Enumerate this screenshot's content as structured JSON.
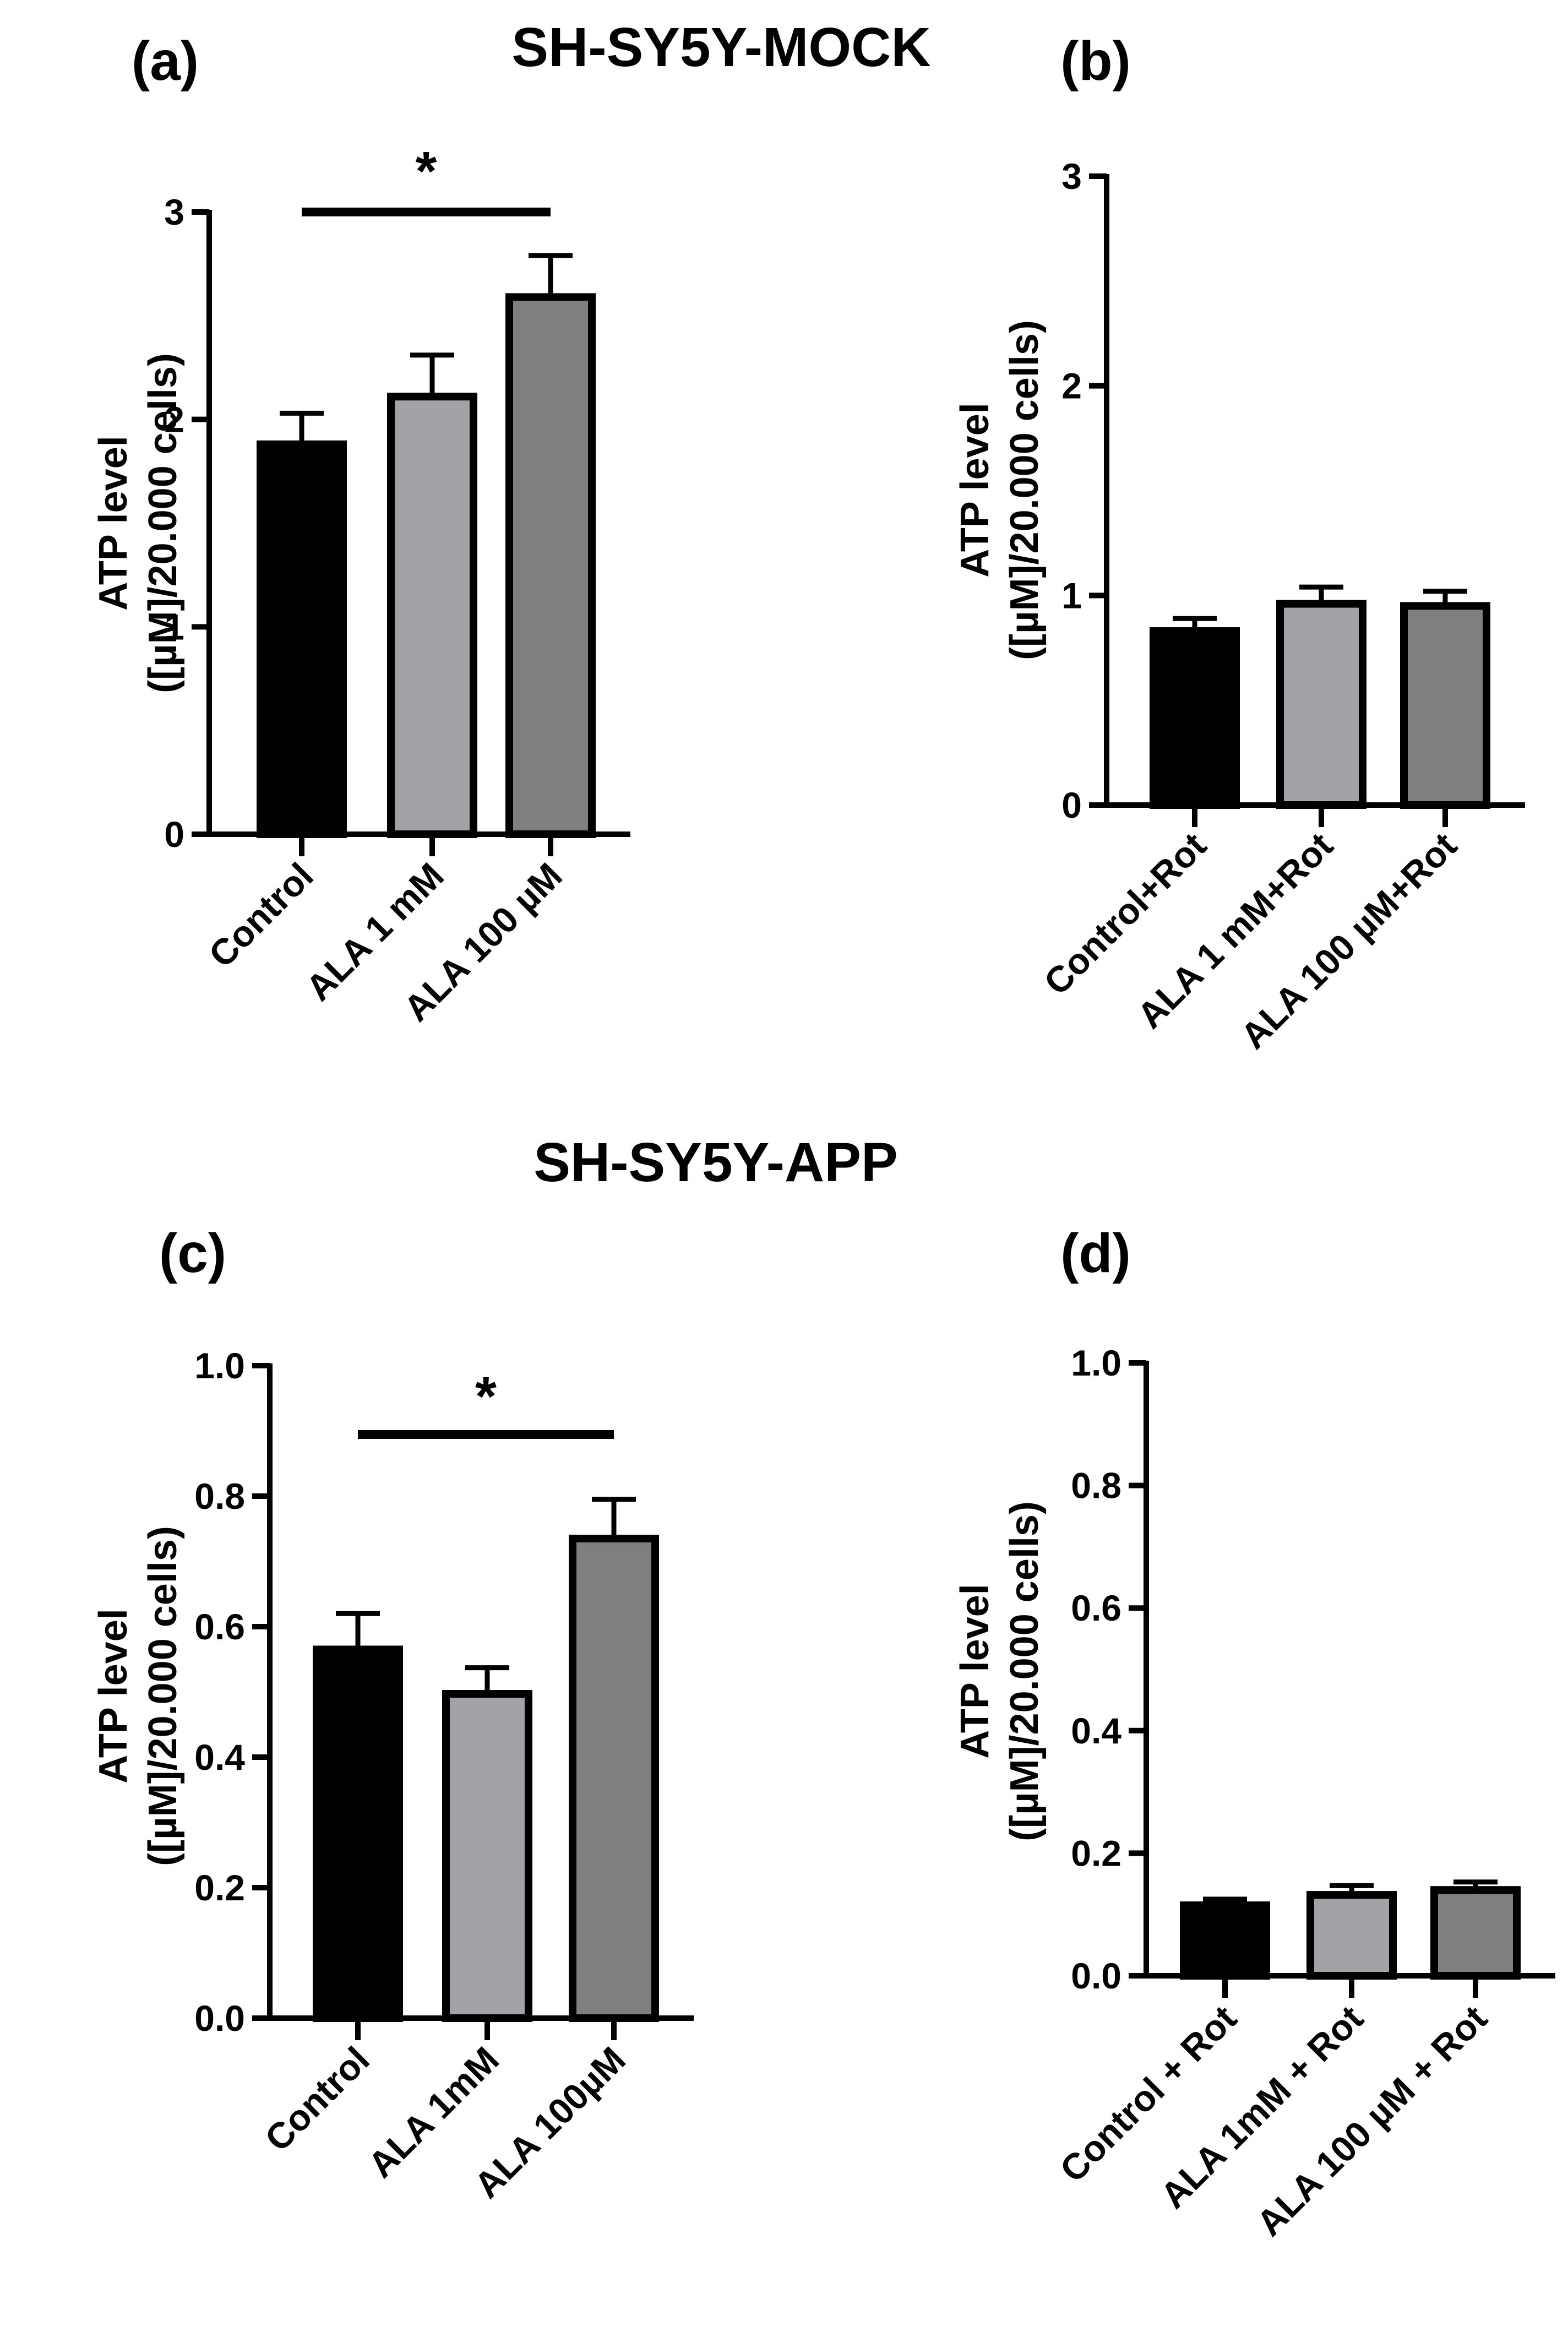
{
  "figure": {
    "group_titles": [
      "SH-SY5Y-MOCK",
      "SH-SY5Y-APP"
    ]
  },
  "colors": {
    "axis": "#000000",
    "bar_fills": [
      "#000000",
      "#a3a3a7",
      "#7f7f7f"
    ],
    "bar_outline": "#000000"
  },
  "chart_data": [
    {
      "panel": "(a)",
      "type": "bar",
      "ylabel_lines": [
        "ATP level",
        "([µM]/20.000 cells)"
      ],
      "categories": [
        "Control",
        "ALA 1 mM",
        "ALA 100 µM"
      ],
      "values": [
        1.88,
        2.11,
        2.59
      ],
      "errors": [
        0.15,
        0.2,
        0.2
      ],
      "ylim": [
        0,
        3
      ],
      "yticks": [
        0,
        1,
        2,
        3
      ],
      "ytick_labels": [
        "0",
        "1",
        "2",
        "3"
      ],
      "significance": {
        "from": 0,
        "to": 2,
        "label": "*"
      }
    },
    {
      "panel": "(b)",
      "type": "bar",
      "ylabel_lines": [
        "ATP level",
        "([µM]/20.000 cells)"
      ],
      "categories": [
        "Control+Rot",
        "ALA 1 mM+Rot",
        "ALA 100 µM+Rot"
      ],
      "values": [
        0.83,
        0.96,
        0.95
      ],
      "errors": [
        0.06,
        0.08,
        0.07
      ],
      "ylim": [
        0,
        3
      ],
      "yticks": [
        0,
        1,
        2,
        3
      ],
      "ytick_labels": [
        "0",
        "1",
        "2",
        "3"
      ]
    },
    {
      "panel": "(c)",
      "type": "bar",
      "ylabel_lines": [
        "ATP level",
        "([µM]/20.000 cells)"
      ],
      "categories": [
        "Control",
        "ALA 1mM",
        "ALA 100µM"
      ],
      "values": [
        0.565,
        0.497,
        0.735
      ],
      "errors": [
        0.055,
        0.04,
        0.06
      ],
      "ylim": [
        0,
        1
      ],
      "yticks": [
        0,
        0.2,
        0.4,
        0.6,
        0.8,
        1.0
      ],
      "ytick_labels": [
        "0.0",
        "0.2",
        "0.4",
        "0.6",
        "0.8",
        "1.0"
      ],
      "significance": {
        "from": 0,
        "to": 2,
        "label": "*"
      }
    },
    {
      "panel": "(d)",
      "type": "bar",
      "ylabel_lines": [
        "ATP level",
        "([µM]/20.000 cells)"
      ],
      "categories": [
        "Control + Rot",
        "ALA 1mM + Rot",
        "ALA 100 µM + Rot"
      ],
      "values": [
        0.115,
        0.132,
        0.14
      ],
      "errors": [
        0.01,
        0.015,
        0.013
      ],
      "ylim": [
        0,
        1
      ],
      "yticks": [
        0,
        0.2,
        0.4,
        0.6,
        0.8,
        1.0
      ],
      "ytick_labels": [
        "0.0",
        "0.2",
        "0.4",
        "0.6",
        "0.8",
        "1.0"
      ]
    }
  ]
}
